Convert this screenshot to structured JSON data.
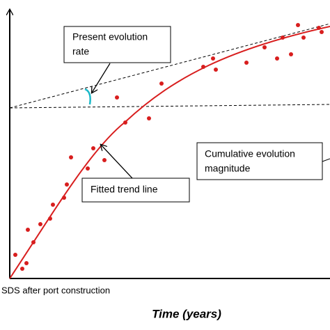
{
  "present_rate_label": [
    "Present evolution",
    "rate"
  ],
  "cumulative_label": [
    "Cumulative evolution",
    "magnitude"
  ],
  "trend_label": "Fitted trend line",
  "origin_label": "SDS after port construction",
  "x_axis_title": "Time (years)"
}
